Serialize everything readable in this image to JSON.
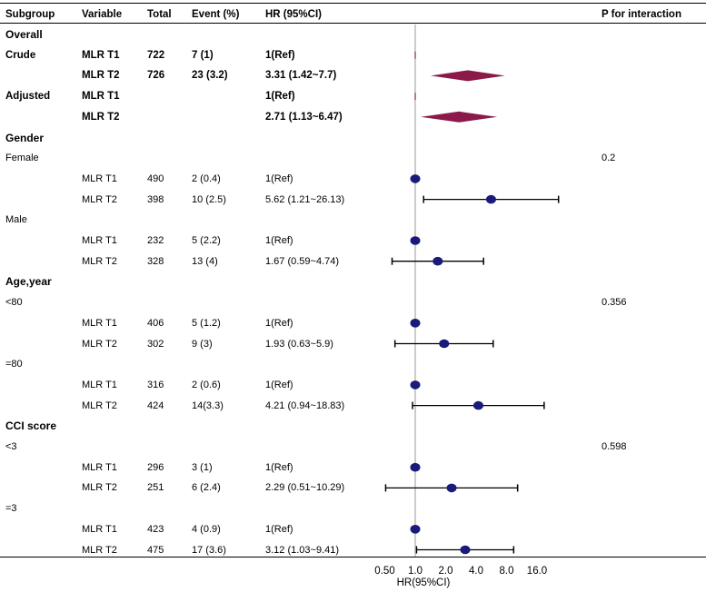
{
  "chart_data": {
    "type": "forest",
    "headers": {
      "subgroup": "Subgroup",
      "variable": "Variable",
      "total": "Total",
      "event": "Event (%)",
      "hr": "HR (95%CI)",
      "p": "P for interaction"
    },
    "xaxis": {
      "label": "HR(95%CI)",
      "scale": "log2",
      "ref_line": 1.0,
      "ticks": [
        0.5,
        1.0,
        2.0,
        4.0,
        8.0,
        16.0
      ],
      "tick_labels": [
        "0.50",
        "1.0",
        "2.0",
        "4.0",
        "8.0",
        "16.0"
      ]
    },
    "rows": [
      {
        "kind": "section",
        "label": "Overall"
      },
      {
        "kind": "data",
        "bold": true,
        "marker": "diamond",
        "subgroup": "Crude",
        "variable": "MLR T1",
        "total": "722",
        "event": "7 (1)",
        "hr_text": "1(Ref)",
        "hr": 1,
        "lo": 1,
        "hi": 1,
        "ref": true
      },
      {
        "kind": "data",
        "bold": true,
        "marker": "diamond",
        "variable": "MLR T2",
        "total": "726",
        "event": "23 (3.2)",
        "hr_text": "3.31 (1.42~7.7)",
        "hr": 3.31,
        "lo": 1.42,
        "hi": 7.7
      },
      {
        "kind": "data",
        "bold": true,
        "marker": "diamond",
        "subgroup": "Adjusted",
        "variable": "MLR T1",
        "hr_text": "1(Ref)",
        "hr": 1,
        "lo": 1,
        "hi": 1,
        "ref": true
      },
      {
        "kind": "data",
        "bold": true,
        "marker": "diamond",
        "variable": "MLR T2",
        "hr_text": "2.71 (1.13~6.47)",
        "hr": 2.71,
        "lo": 1.13,
        "hi": 6.47
      },
      {
        "kind": "section",
        "label": "Gender"
      },
      {
        "kind": "subsection",
        "label": "Female",
        "p": "0.2"
      },
      {
        "kind": "data",
        "marker": "dot",
        "variable": "MLR T1",
        "total": "490",
        "event": "2 (0.4)",
        "hr_text": "1(Ref)",
        "hr": 1,
        "lo": 1,
        "hi": 1,
        "ref": true
      },
      {
        "kind": "data",
        "marker": "dot",
        "variable": "MLR T2",
        "total": "398",
        "event": "10 (2.5)",
        "hr_text": "5.62 (1.21~26.13)",
        "hr": 5.62,
        "lo": 1.21,
        "hi": 26.13
      },
      {
        "kind": "subsection",
        "label": "Male"
      },
      {
        "kind": "data",
        "marker": "dot",
        "variable": "MLR T1",
        "total": "232",
        "event": "5 (2.2)",
        "hr_text": "1(Ref)",
        "hr": 1,
        "lo": 1,
        "hi": 1,
        "ref": true
      },
      {
        "kind": "data",
        "marker": "dot",
        "variable": "MLR T2",
        "total": "328",
        "event": "13 (4)",
        "hr_text": "1.67 (0.59~4.74)",
        "hr": 1.67,
        "lo": 0.59,
        "hi": 4.74
      },
      {
        "kind": "section",
        "label": "Age,year"
      },
      {
        "kind": "subsection",
        "label": "<80",
        "p": "0.356"
      },
      {
        "kind": "data",
        "marker": "dot",
        "variable": "MLR T1",
        "total": "406",
        "event": "5 (1.2)",
        "hr_text": "1(Ref)",
        "hr": 1,
        "lo": 1,
        "hi": 1,
        "ref": true
      },
      {
        "kind": "data",
        "marker": "dot",
        "variable": "MLR T2",
        "total": "302",
        "event": "9 (3)",
        "hr_text": "1.93 (0.63~5.9)",
        "hr": 1.93,
        "lo": 0.63,
        "hi": 5.9
      },
      {
        "kind": "subsection",
        "label": "=80"
      },
      {
        "kind": "data",
        "marker": "dot",
        "variable": "MLR T1",
        "total": "316",
        "event": "2 (0.6)",
        "hr_text": "1(Ref)",
        "hr": 1,
        "lo": 1,
        "hi": 1,
        "ref": true
      },
      {
        "kind": "data",
        "marker": "dot",
        "variable": "MLR T2",
        "total": "424",
        "event": "14(3.3)",
        "hr_text": "4.21 (0.94~18.83)",
        "hr": 4.21,
        "lo": 0.94,
        "hi": 18.83
      },
      {
        "kind": "section",
        "label": "CCI score"
      },
      {
        "kind": "subsection",
        "label": "<3",
        "p": "0.598"
      },
      {
        "kind": "data",
        "marker": "dot",
        "variable": "MLR T1",
        "total": "296",
        "event": "3 (1)",
        "hr_text": "1(Ref)",
        "hr": 1,
        "lo": 1,
        "hi": 1,
        "ref": true
      },
      {
        "kind": "data",
        "marker": "dot",
        "variable": "MLR T2",
        "total": "251",
        "event": "6 (2.4)",
        "hr_text": "2.29 (0.51~10.29)",
        "hr": 2.29,
        "lo": 0.51,
        "hi": 10.29
      },
      {
        "kind": "subsection",
        "label": "=3"
      },
      {
        "kind": "data",
        "marker": "dot",
        "variable": "MLR T1",
        "total": "423",
        "event": "4 (0.9)",
        "hr_text": "1(Ref)",
        "hr": 1,
        "lo": 1,
        "hi": 1,
        "ref": true
      },
      {
        "kind": "data",
        "marker": "dot",
        "variable": "MLR T2",
        "total": "475",
        "event": "17 (3.6)",
        "hr_text": "3.12 (1.03~9.41)",
        "hr": 3.12,
        "lo": 1.03,
        "hi": 9.41
      }
    ],
    "colors": {
      "dot": "#1a1a7a",
      "diamond": "#8b1a4a",
      "refline": "#bbbbbb",
      "whisker": "#000000"
    }
  }
}
